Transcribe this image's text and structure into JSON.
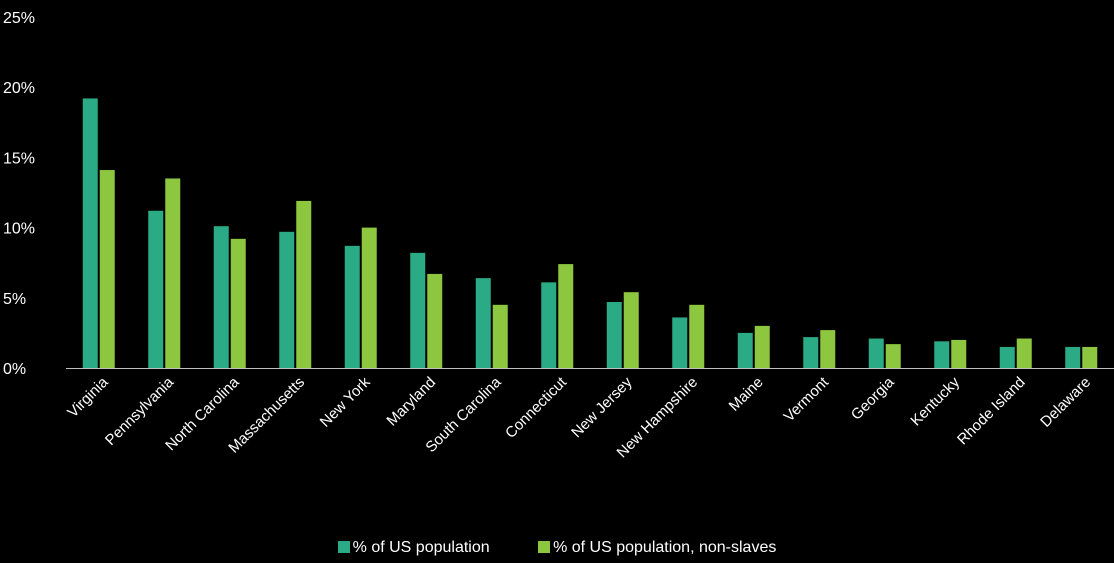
{
  "chart_data": {
    "type": "bar",
    "categories": [
      "Virginia",
      "Pennsylvania",
      "North Carolina",
      "Massachusetts",
      "New York",
      "Maryland",
      "South Carolina",
      "Connecticut",
      "New Jersey",
      "New Hampshire",
      "Maine",
      "Vermont",
      "Georgia",
      "Kentucky",
      "Rhode Island",
      "Delaware"
    ],
    "series": [
      {
        "name": "% of US population",
        "color": "#2BAA86",
        "values": [
          19.2,
          11.2,
          10.1,
          9.7,
          8.7,
          8.2,
          6.4,
          6.1,
          4.7,
          3.6,
          2.5,
          2.2,
          2.1,
          1.9,
          1.5,
          1.5
        ]
      },
      {
        "name": "% of US population, non-slaves",
        "color": "#8DC63F",
        "values": [
          14.1,
          13.5,
          9.2,
          11.9,
          10.0,
          6.7,
          4.5,
          7.4,
          5.4,
          4.5,
          3.0,
          2.7,
          1.7,
          2.0,
          2.1,
          1.5
        ]
      }
    ],
    "ylim": [
      0,
      25
    ],
    "yticks": [
      "0%",
      "5%",
      "10%",
      "15%",
      "20%",
      "25%"
    ],
    "grid": false,
    "legend_position": "bottom"
  }
}
